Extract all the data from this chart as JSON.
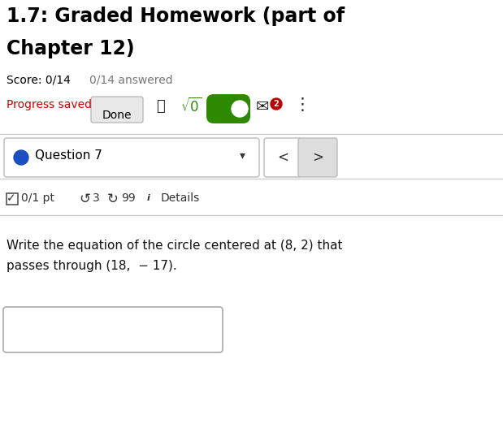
{
  "title_line1": "1.7: Graded Homework (part of",
  "title_line2": "Chapter 12)",
  "score_text": "Score: 0/14",
  "answered_text": "0/14 answered",
  "progress_text": "Progress saved",
  "done_btn": "Done",
  "question_label": "Question 7",
  "pts_text": "0/1 pt",
  "retry_num": "3",
  "attempts_num": "99",
  "details_text": "Details",
  "main_text_line1": "Write the equation of the circle centered at (8, 2) that",
  "main_text_line2": "passes through (18,  − 17).",
  "bg_color": "#ffffff",
  "title_color": "#000000",
  "score_color": "#000000",
  "answered_color": "#777777",
  "progress_color": "#cc0000",
  "green_color": "#2d8a00",
  "blue_dot_color": "#1a4fbf",
  "dark_red_badge": "#bb0000",
  "separator_color": "#cccccc",
  "done_btn_bg": "#e8e8e8",
  "nav_btn_bg": "#dddddd",
  "title_fontsize": 17,
  "score_fontsize": 10,
  "body_fontsize": 10,
  "question_fontsize": 11,
  "main_fontsize": 11
}
